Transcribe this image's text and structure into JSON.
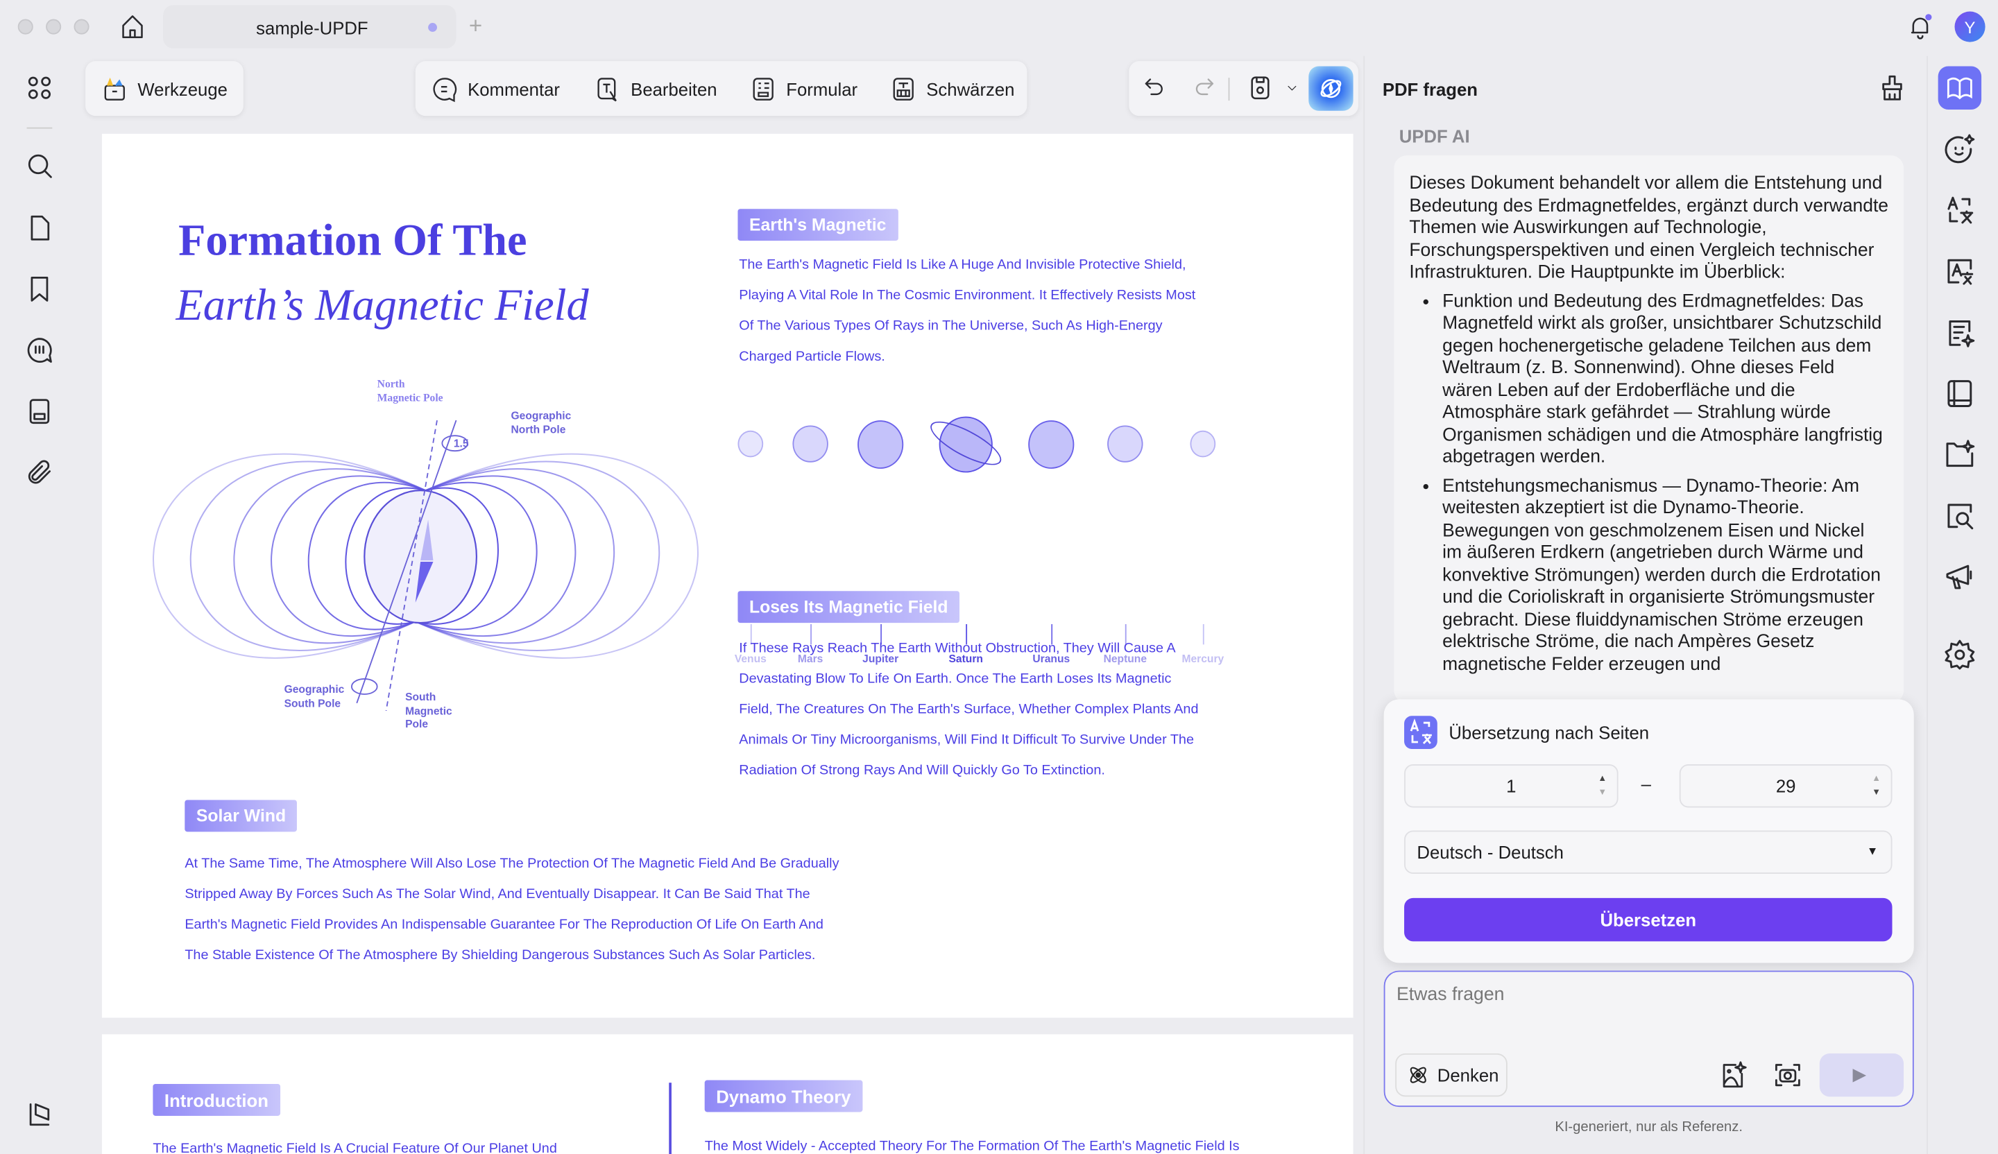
{
  "titlebar": {
    "tab_title": "sample-UPDF",
    "new_tab": "+",
    "avatar_initial": "Y"
  },
  "toolbar": {
    "tools_label": "Werkzeuge",
    "comment_label": "Kommentar",
    "edit_label": "Bearbeiten",
    "form_label": "Formular",
    "redact_label": "Schwärzen"
  },
  "document": {
    "title_line1": "Formation Of The",
    "title_line2": "Earth’s Magnetic Field",
    "diagram_labels": {
      "north_magnetic": [
        "North",
        "Magnetic Pole"
      ],
      "geo_north": [
        "Geographic",
        "North Pole"
      ],
      "angle": "1.5",
      "geo_south": [
        "Geographic",
        "South Pole"
      ],
      "south_magnetic": [
        "South",
        "Magnetic",
        "Pole"
      ]
    },
    "section1": {
      "heading": "Earth's Magnetic",
      "lines": [
        "The Earth's Magnetic Field Is Like A Huge And Invisible Protective Shield,",
        "Playing A Vital Role In The Cosmic Environment. It Effectively Resists Most",
        "Of The Various Types Of Rays in The Universe, Such As High-Energy",
        "Charged Particle Flows."
      ]
    },
    "planets": [
      "Venus",
      "Mars",
      "Jupiter",
      "Saturn",
      "Uranus",
      "Neptune",
      "Mercury"
    ],
    "section2": {
      "heading": "Loses Its Magnetic Field",
      "lines": [
        "If These Rays Reach The Earth Without Obstruction, They Will Cause A",
        "Devastating Blow To Life On Earth. Once The Earth Loses Its Magnetic",
        "Field, The Creatures On The Earth's Surface, Whether Complex Plants And",
        "Animals Or Tiny Microorganisms, Will Find It Difficult To Survive Under The",
        "Radiation Of Strong Rays And Will Quickly Go To Extinction."
      ]
    },
    "section3": {
      "heading": "Solar Wind",
      "lines": [
        "At The Same Time, The Atmosphere Will Also Lose The Protection Of The Magnetic Field And Be Gradually",
        "Stripped Away By Forces Such As The Solar Wind, And Eventually Disappear. It Can Be Said That The",
        "Earth's Magnetic Field Provides An Indispensable Guarantee For The Reproduction Of Life On Earth And",
        "The Stable Existence Of The Atmosphere By Shielding Dangerous Substances Such As Solar Particles."
      ]
    },
    "page2": {
      "intro_heading": "Introduction",
      "intro_text": "The Earth's Magnetic Field Is A Crucial Feature Of Our Planet Und",
      "dynamo_heading": "Dynamo Theory",
      "dynamo_text": "The Most Widely - Accepted Theory For The Formation Of The Earth's Magnetic Field Is"
    }
  },
  "ai_panel": {
    "title": "PDF fragen",
    "sender": "UPDF AI",
    "intro": "Dieses Dokument behandelt vor allem die Entstehung und Bedeutung des Erdmagnetfeldes, ergänzt durch verwandte Themen wie Auswirkungen auf Technologie, Forschungsperspektiven und einen Vergleich technischer Infrastrukturen. Die Hauptpunkte im Überblick:",
    "bullets": [
      "Funktion und Bedeutung des Erdmagnetfeldes: Das Magnetfeld wirkt als großer, unsichtbarer Schutzschild gegen hochenergetische geladene Teilchen aus dem Weltraum (z. B. Sonnenwind). Ohne dieses Feld wären Leben auf der Erdoberfläche und die Atmosphäre stark gefährdet — Strahlung würde Organismen schädigen und die Atmosphäre langfristig abgetragen werden.",
      "Entstehungsmechanismus — Dynamo-Theorie: Am weitesten akzeptiert ist die Dynamo-Theorie. Bewegungen von geschmolzenem Eisen und Nickel im äußeren Erdkern (angetrieben durch Wärme und konvektive Strömungen) werden durch die Erdrotation und die Corioliskraft in organisierte Strömungsmuster gebracht. Diese fluiddynamischen Ströme erzeugen elektrische Ströme, die nach Ampères Gesetz magnetische Felder erzeugen und"
    ],
    "translate": {
      "title": "Übersetzung nach Seiten",
      "from_page": "1",
      "range_sep": "–",
      "to_page": "29",
      "language": "Deutsch - Deutsch",
      "button": "Übersetzen"
    },
    "input_placeholder": "Etwas fragen",
    "think_label": "Denken",
    "disclaimer": "KI-generiert, nur als Referenz."
  },
  "colors": {
    "accent": "#6c3ff0",
    "doc_text": "#4b3ee4",
    "badge_start": "#8f88f6",
    "badge_end": "#c9c6fb"
  }
}
